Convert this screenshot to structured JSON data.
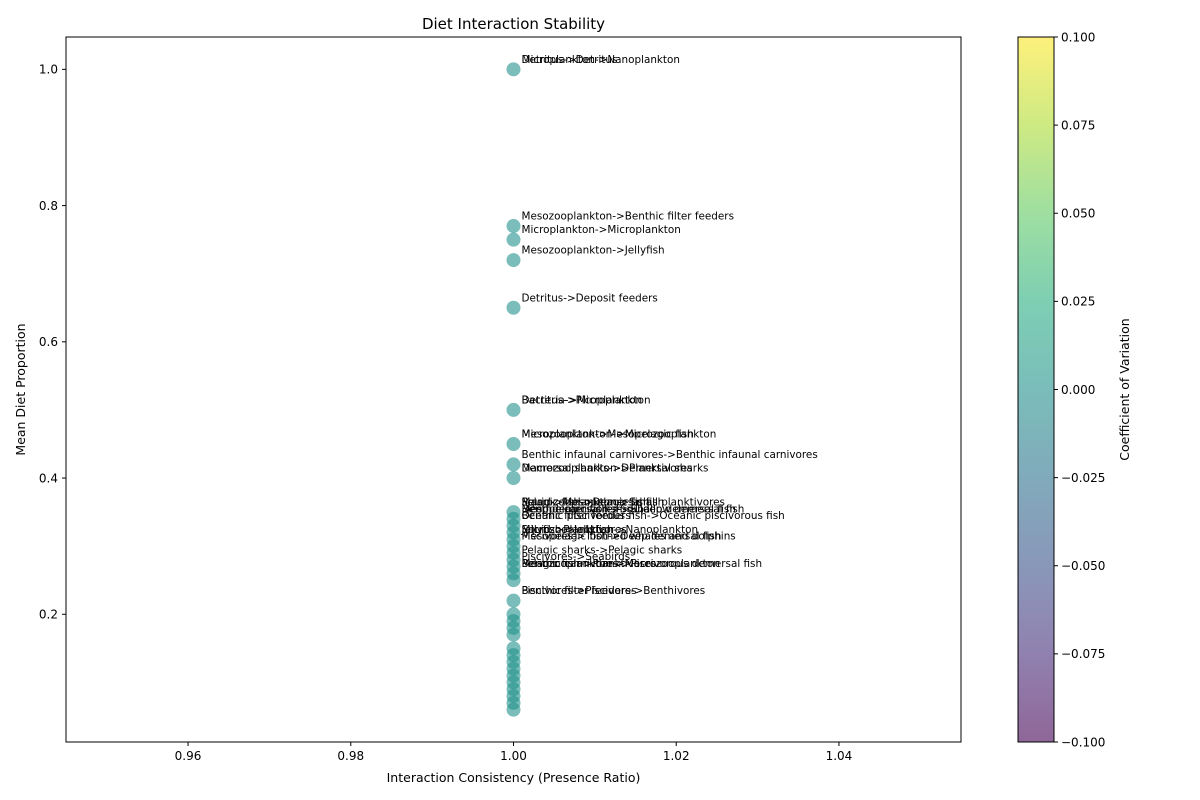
{
  "chart_data": {
    "type": "scatter",
    "title": "Diet Interaction Stability",
    "xlabel": "Interaction Consistency (Presence Ratio)",
    "ylabel": "Mean Diet Proportion",
    "xlim": [
      0.945,
      1.055
    ],
    "ylim": [
      0.0125,
      1.0475
    ],
    "x_ticks": [
      "0.96",
      "0.98",
      "1.00",
      "1.02",
      "1.04"
    ],
    "y_ticks": [
      "0.2",
      "0.4",
      "0.6",
      "0.8",
      "1.0"
    ],
    "grid": false,
    "point_color": "#21918c",
    "point_opacity": 0.6,
    "points": [
      {
        "x": 1.0,
        "y": 1.0
      },
      {
        "x": 1.0,
        "y": 0.77
      },
      {
        "x": 1.0,
        "y": 0.75
      },
      {
        "x": 1.0,
        "y": 0.72
      },
      {
        "x": 1.0,
        "y": 0.65
      },
      {
        "x": 1.0,
        "y": 0.5
      },
      {
        "x": 1.0,
        "y": 0.45
      },
      {
        "x": 1.0,
        "y": 0.42
      },
      {
        "x": 1.0,
        "y": 0.4
      },
      {
        "x": 1.0,
        "y": 0.35
      },
      {
        "x": 1.0,
        "y": 0.34
      },
      {
        "x": 1.0,
        "y": 0.33
      },
      {
        "x": 1.0,
        "y": 0.32
      },
      {
        "x": 1.0,
        "y": 0.31
      },
      {
        "x": 1.0,
        "y": 0.3
      },
      {
        "x": 1.0,
        "y": 0.29
      },
      {
        "x": 1.0,
        "y": 0.28
      },
      {
        "x": 1.0,
        "y": 0.27
      },
      {
        "x": 1.0,
        "y": 0.26
      },
      {
        "x": 1.0,
        "y": 0.25
      },
      {
        "x": 1.0,
        "y": 0.22
      },
      {
        "x": 1.0,
        "y": 0.2
      },
      {
        "x": 1.0,
        "y": 0.19
      },
      {
        "x": 1.0,
        "y": 0.18
      },
      {
        "x": 1.0,
        "y": 0.17
      },
      {
        "x": 1.0,
        "y": 0.15
      },
      {
        "x": 1.0,
        "y": 0.14
      },
      {
        "x": 1.0,
        "y": 0.13
      },
      {
        "x": 1.0,
        "y": 0.12
      },
      {
        "x": 1.0,
        "y": 0.11
      },
      {
        "x": 1.0,
        "y": 0.1
      },
      {
        "x": 1.0,
        "y": 0.09
      },
      {
        "x": 1.0,
        "y": 0.08
      },
      {
        "x": 1.0,
        "y": 0.07
      },
      {
        "x": 1.0,
        "y": 0.06
      }
    ],
    "annotations": [
      {
        "x": 1.0,
        "y": 1.0,
        "text": "Detritus->Detritus"
      },
      {
        "x": 1.0,
        "y": 1.0,
        "text": "Microplankton->Nanoplankton"
      },
      {
        "x": 1.0,
        "y": 0.77,
        "text": "Mesozooplankton->Benthic filter feeders"
      },
      {
        "x": 1.0,
        "y": 0.75,
        "text": "Microplankton->Microplankton"
      },
      {
        "x": 1.0,
        "y": 0.72,
        "text": "Mesozooplankton->Jellyfish"
      },
      {
        "x": 1.0,
        "y": 0.65,
        "text": "Detritus->Deposit feeders"
      },
      {
        "x": 1.0,
        "y": 0.5,
        "text": "Detritus->Picoplankton"
      },
      {
        "x": 1.0,
        "y": 0.5,
        "text": "Bacteria->Microplankton"
      },
      {
        "x": 1.0,
        "y": 0.45,
        "text": "Microplankton->Mesopelagic fish"
      },
      {
        "x": 1.0,
        "y": 0.45,
        "text": "Mesozooplankton->Microzooplankton"
      },
      {
        "x": 1.0,
        "y": 0.42,
        "text": "Benthic infaunal carnivores->Benthic infaunal carnivores"
      },
      {
        "x": 1.0,
        "y": 0.4,
        "text": "Macrozooplankton->Planktivores"
      },
      {
        "x": 1.0,
        "y": 0.4,
        "text": "Demersal sharks->Demersal sharks"
      },
      {
        "x": 1.0,
        "y": 0.35,
        "text": "Macrozooplankton->Small planktivores"
      },
      {
        "x": 1.0,
        "y": 0.35,
        "text": "Squid->Mesopelagic fish"
      },
      {
        "x": 1.0,
        "y": 0.35,
        "text": "Pelagic fish->Demersal fish"
      },
      {
        "x": 1.0,
        "y": 0.34,
        "text": "Benthic carnivores->Shallow demersal fish"
      },
      {
        "x": 1.0,
        "y": 0.34,
        "text": "Deep demersal fish->Deep demersal fish"
      },
      {
        "x": 1.0,
        "y": 0.34,
        "text": "Mesopelagic fish->Squid"
      },
      {
        "x": 1.0,
        "y": 0.33,
        "text": "Oceanic piscivorous fish->Oceanic piscivorous fish"
      },
      {
        "x": 1.0,
        "y": 0.33,
        "text": "Benthic filter feeders"
      },
      {
        "x": 1.0,
        "y": 0.31,
        "text": "Microzooplankton->Nanoplankton"
      },
      {
        "x": 1.0,
        "y": 0.31,
        "text": "Jellyfish->Jellyfish"
      },
      {
        "x": 1.0,
        "y": 0.31,
        "text": "Squid->Planktivores"
      },
      {
        "x": 1.0,
        "y": 0.3,
        "text": "Mesopelagic fish->Deep demersal fish"
      },
      {
        "x": 1.0,
        "y": 0.3,
        "text": "Piscivores->Toothed whales and dolphins"
      },
      {
        "x": 1.0,
        "y": 0.28,
        "text": "Pelagic sharks->Pelagic sharks"
      },
      {
        "x": 1.0,
        "y": 0.27,
        "text": "Piscivores->Seabirds"
      },
      {
        "x": 1.0,
        "y": 0.26,
        "text": "Benthic carnivores->Piscivorous demersal fish"
      },
      {
        "x": 1.0,
        "y": 0.26,
        "text": "Mesozooplankton->Macrozooplankton"
      },
      {
        "x": 1.0,
        "y": 0.26,
        "text": "Pelagic fish->Planktivores"
      },
      {
        "x": 1.0,
        "y": 0.22,
        "text": "Piscivores->Piscivores"
      },
      {
        "x": 1.0,
        "y": 0.22,
        "text": "Benthic filter feeders->Benthivores"
      }
    ],
    "colorbar": {
      "label": "Coefficient of Variation",
      "range": [
        -0.1,
        0.1
      ],
      "colormap": "viridis",
      "ticks": [
        "−0.100",
        "−0.075",
        "−0.050",
        "−0.025",
        "0.000",
        "0.025",
        "0.050",
        "0.075",
        "0.100"
      ]
    }
  }
}
